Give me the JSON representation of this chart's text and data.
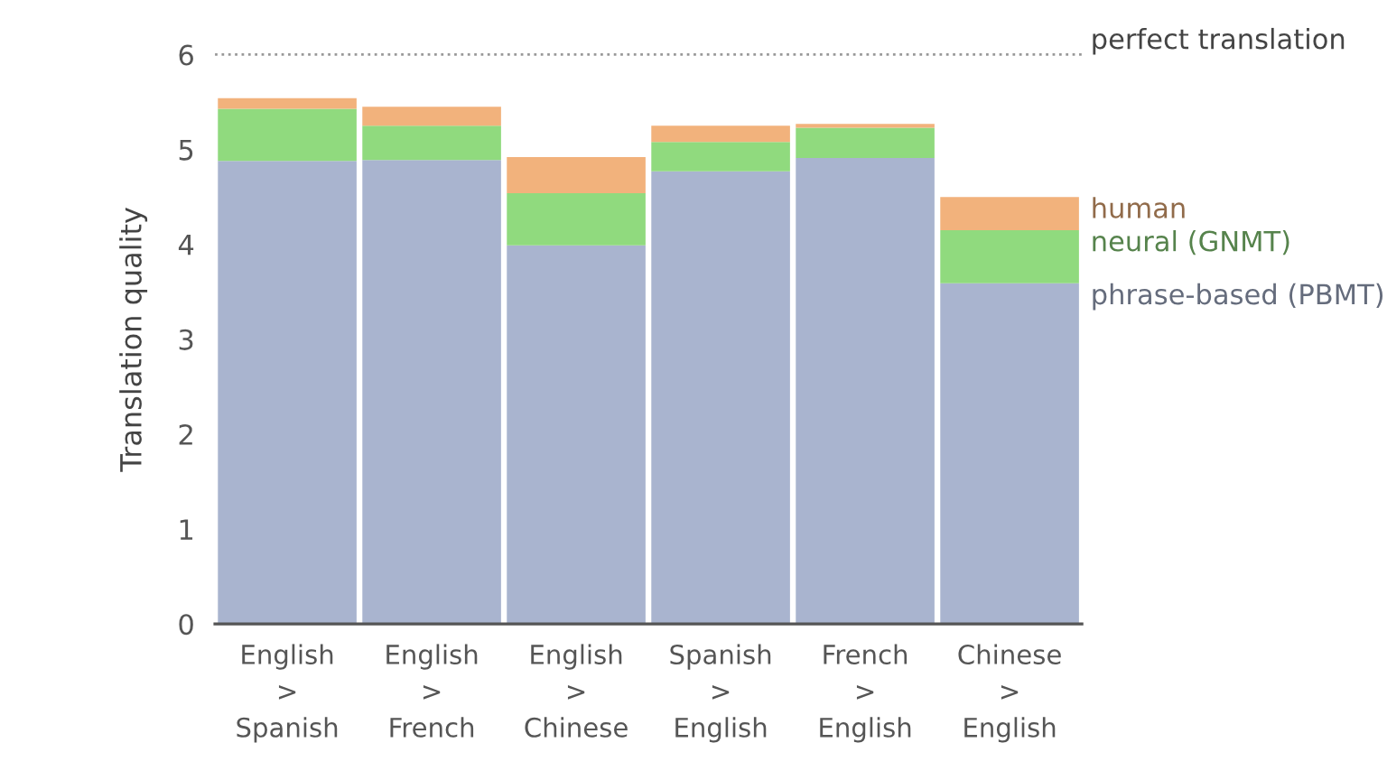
{
  "chart_data": {
    "type": "bar",
    "stacked": true,
    "ylabel": "Translation quality",
    "categories": [
      "English\n>\nSpanish",
      "English\n>\nFrench",
      "English\n>\nChinese",
      "Spanish\n>\nEnglish",
      "French\n>\nEnglish",
      "Chinese\n>\nEnglish"
    ],
    "series": [
      {
        "name": "phrase-based (PBMT)",
        "color": "#a9b4cf",
        "values": [
          4.88,
          4.89,
          3.99,
          4.77,
          4.91,
          3.59
        ]
      },
      {
        "name": "neural (GNMT)",
        "color": "#90da7e",
        "values": [
          0.55,
          0.36,
          0.55,
          0.31,
          0.32,
          0.56
        ]
      },
      {
        "name": "human",
        "color": "#f2b27c",
        "values": [
          0.11,
          0.2,
          0.38,
          0.17,
          0.04,
          0.35
        ]
      }
    ],
    "ylim": [
      0,
      6
    ],
    "yticks": [
      0,
      1,
      2,
      3,
      4,
      5,
      6
    ],
    "ref_lines": [
      {
        "axis": "y",
        "value": 6,
        "label": "perfect translation",
        "color": "#999999",
        "line_style": "dotted"
      }
    ],
    "legend": "right",
    "grid": false
  }
}
